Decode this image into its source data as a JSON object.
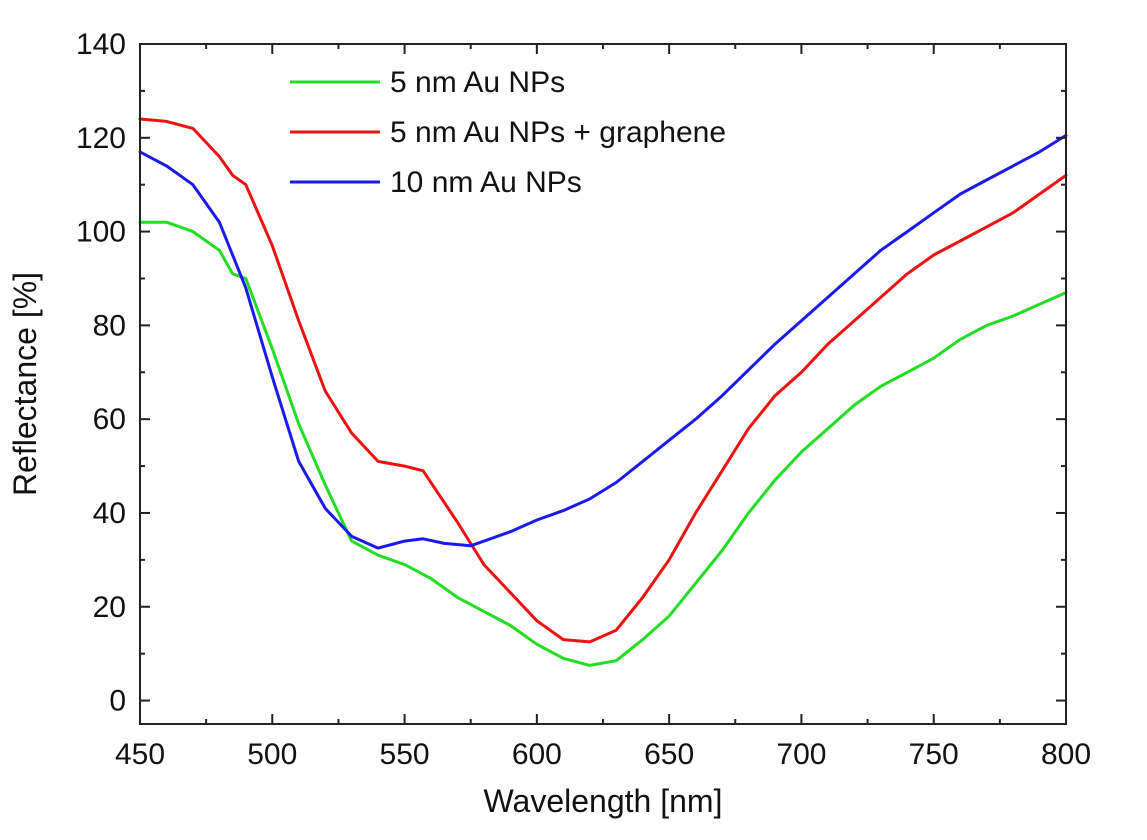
{
  "chart_data": {
    "type": "line",
    "title": "",
    "xlabel": "Wavelength [nm]",
    "ylabel": "Reflectance [%]",
    "xlim": [
      450,
      800
    ],
    "ylim": [
      -5,
      140
    ],
    "xticks": [
      450,
      500,
      550,
      600,
      650,
      700,
      750,
      800
    ],
    "yticks": [
      0,
      20,
      40,
      60,
      80,
      100,
      120,
      140
    ],
    "legend_position": "top-center",
    "grid": false,
    "series": [
      {
        "name": "5 nm Au NPs",
        "color": "#22dd22",
        "x": [
          450,
          460,
          470,
          480,
          485,
          490,
          500,
          510,
          520,
          530,
          540,
          550,
          560,
          570,
          580,
          590,
          600,
          610,
          620,
          630,
          640,
          650,
          660,
          670,
          680,
          690,
          700,
          710,
          720,
          730,
          740,
          750,
          760,
          770,
          780,
          790,
          800
        ],
        "y": [
          102,
          102,
          100,
          96,
          91,
          90,
          75,
          59,
          46,
          34,
          31,
          29,
          26,
          22,
          19,
          16,
          12,
          9,
          7.5,
          8.5,
          13,
          18,
          25,
          32,
          40,
          47,
          53,
          58,
          63,
          67,
          70,
          73,
          77,
          80,
          82,
          84.5,
          87
        ]
      },
      {
        "name": "5 nm Au NPs + graphene",
        "color": "#ee1111",
        "x": [
          450,
          460,
          470,
          480,
          485,
          490,
          500,
          510,
          520,
          530,
          540,
          550,
          557,
          570,
          580,
          590,
          600,
          610,
          620,
          630,
          640,
          650,
          660,
          670,
          680,
          690,
          700,
          710,
          720,
          730,
          740,
          750,
          760,
          770,
          780,
          790,
          800
        ],
        "y": [
          124,
          123.5,
          122,
          116,
          112,
          110,
          97,
          81,
          66,
          57,
          51,
          50,
          49,
          38,
          29,
          23,
          17,
          13,
          12.5,
          15,
          22,
          30,
          40,
          49,
          58,
          65,
          70,
          76,
          81,
          86,
          91,
          95,
          98,
          101,
          104,
          108,
          112
        ]
      },
      {
        "name": "10 nm Au NPs",
        "color": "#1a1aee",
        "x": [
          450,
          460,
          470,
          480,
          485,
          490,
          500,
          510,
          520,
          530,
          540,
          550,
          557,
          565,
          575,
          590,
          600,
          610,
          620,
          630,
          640,
          650,
          660,
          670,
          680,
          690,
          700,
          710,
          720,
          730,
          740,
          750,
          760,
          770,
          780,
          790,
          800
        ],
        "y": [
          117,
          114,
          110,
          102,
          95,
          88,
          69,
          51,
          41,
          35,
          32.5,
          34,
          34.5,
          33.5,
          33,
          36,
          38.5,
          40.5,
          43,
          46.5,
          51,
          55.5,
          60,
          65,
          70.5,
          76,
          81,
          86,
          91,
          96,
          100,
          104,
          108,
          111,
          114,
          117,
          120.5
        ]
      }
    ]
  }
}
